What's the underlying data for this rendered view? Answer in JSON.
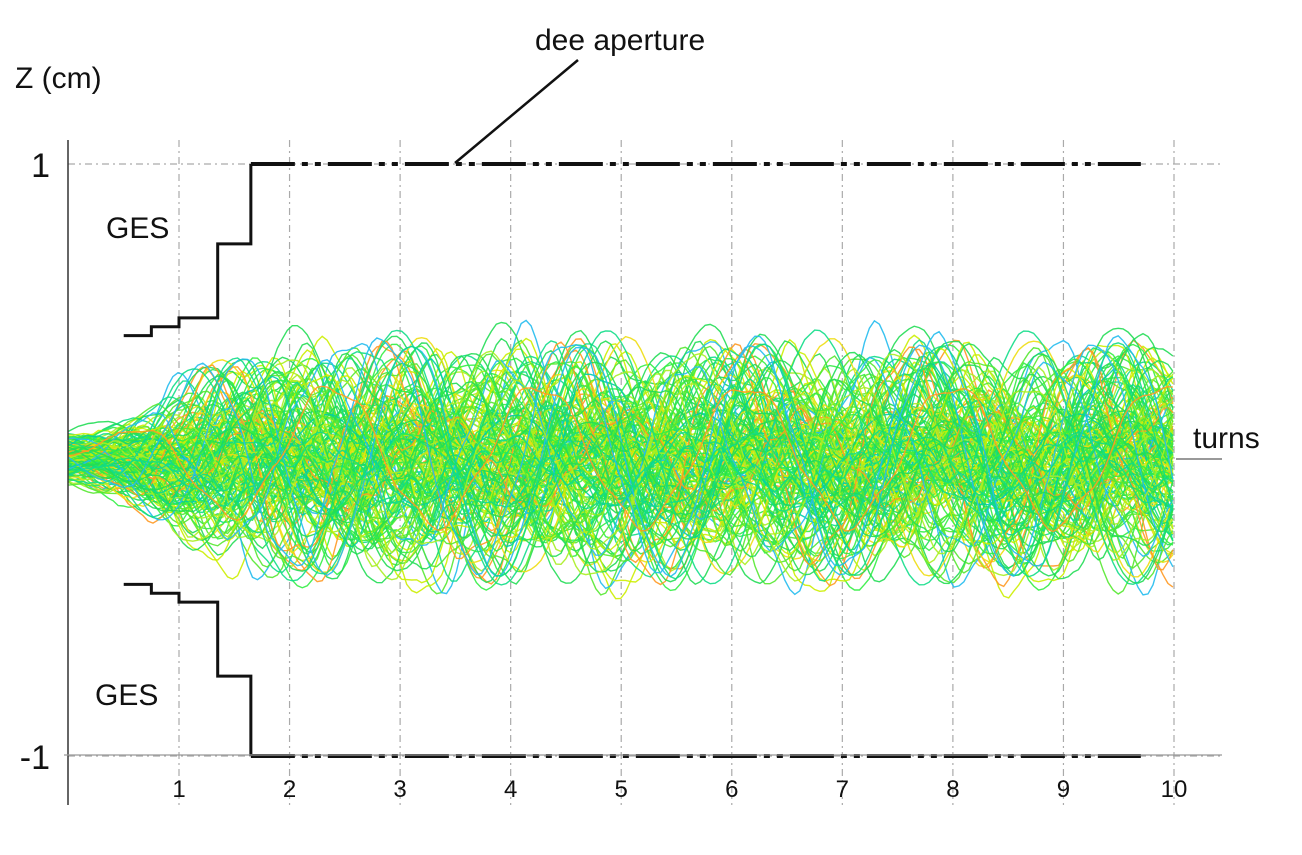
{
  "chart_data": {
    "type": "line",
    "title": "",
    "xlabel": "turns",
    "ylabel": "Z (cm)",
    "xlim": [
      0,
      10.4
    ],
    "ylim": [
      -1,
      1
    ],
    "x_ticks": [
      "1",
      "2",
      "3",
      "4",
      "5",
      "6",
      "7",
      "8",
      "9",
      "10"
    ],
    "x_tick_values": [
      1,
      2,
      3,
      4,
      5,
      6,
      7,
      8,
      9,
      10
    ],
    "y_ticks": [
      "1",
      "-1"
    ],
    "y_tick_values": [
      1,
      -1
    ],
    "grid": true,
    "annotations": {
      "dee_aperture_label": "dee aperture",
      "ges_top_label": "GES",
      "ges_bottom_label": "GES"
    },
    "dee_aperture": {
      "x_range": [
        1.65,
        9.7
      ],
      "z_top": 1.0,
      "z_bottom": -1.0
    },
    "ges_profile": {
      "x": [
        0.5,
        0.75,
        0.75,
        1.0,
        1.0,
        1.35,
        1.35,
        1.65,
        1.65
      ],
      "z": [
        0.42,
        0.42,
        0.45,
        0.45,
        0.48,
        0.48,
        0.73,
        0.73,
        1.0
      ]
    },
    "trajectories": {
      "count": 170,
      "z_envelope_max": 0.49,
      "z_envelope_min": -0.6,
      "colors": [
        "#22dd55",
        "#33ee44",
        "#55e830",
        "#11dd88",
        "#00ccaa",
        "#22bbee",
        "#aaee22",
        "#ccee00",
        "#eedd11",
        "#ff9922",
        "#ee5511"
      ]
    }
  }
}
